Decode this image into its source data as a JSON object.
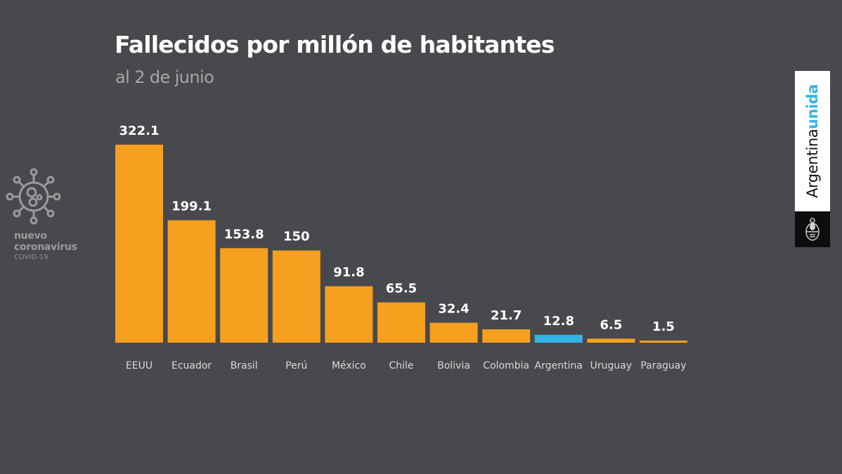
{
  "header": {
    "title": "Fallecidos por millón de habitantes",
    "subtitle": "al 2 de junio"
  },
  "left_logo": {
    "icon": "coronavirus-icon",
    "line1": "nuevo",
    "line2": "coronavirus",
    "line3": "COVID-19"
  },
  "brand": {
    "word1": "Argentina",
    "word2": "unida",
    "emblem": "argentina-coat-of-arms-icon"
  },
  "colors": {
    "background": "#48494d",
    "bar_default": "#f5a01e",
    "bar_highlight": "#36b3e6",
    "title": "#ffffff",
    "subtitle": "#a9a4a6"
  },
  "chart_data": {
    "type": "bar",
    "title": "Fallecidos por millón de habitantes",
    "subtitle": "al 2 de junio",
    "xlabel": "",
    "ylabel": "",
    "categories": [
      "EEUU",
      "Ecuador",
      "Brasil",
      "Perú",
      "México",
      "Chile",
      "Bolivia",
      "Colombia",
      "Argentina",
      "Uruguay",
      "Paraguay"
    ],
    "values": [
      322.1,
      199.1,
      153.8,
      150,
      91.8,
      65.5,
      32.4,
      21.7,
      12.8,
      6.5,
      1.5
    ],
    "value_labels": [
      "322.1",
      "199.1",
      "153.8",
      "150",
      "91.8",
      "65.5",
      "32.4",
      "21.7",
      "12.8",
      "6.5",
      "1.5"
    ],
    "highlight": "Argentina",
    "ylim": [
      0,
      322.1
    ],
    "grid": false,
    "legend": "none"
  }
}
